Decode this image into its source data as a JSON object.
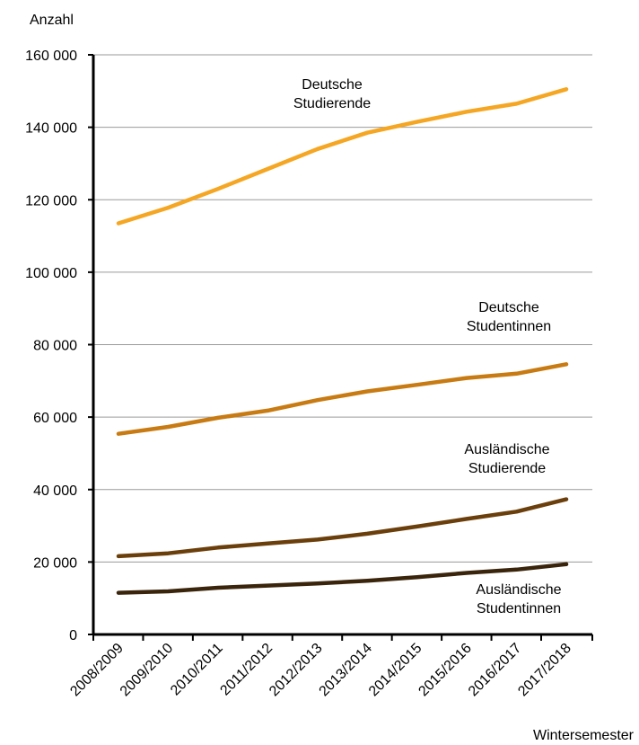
{
  "chart_data": {
    "type": "line",
    "title": "",
    "ylabel": "Anzahl",
    "xlabel": "Wintersemester",
    "ylim": [
      0,
      160000
    ],
    "yticks": [
      0,
      20000,
      40000,
      60000,
      80000,
      100000,
      120000,
      140000,
      160000
    ],
    "ytick_labels": [
      "0",
      "20 000",
      "40 000",
      "60 000",
      "80 000",
      "100 000",
      "120 000",
      "140 000",
      "160 000"
    ],
    "grid": true,
    "categories": [
      "2008/2009",
      "2009/2010",
      "2010/2011",
      "2011/2012",
      "2012/2013",
      "2013/2014",
      "2014/2015",
      "2015/2016",
      "2016/2017",
      "2017/2018"
    ],
    "series": [
      {
        "name": "Deutsche Studierende",
        "label_lines": [
          "Deutsche",
          "Studierende"
        ],
        "color": "#F5A623",
        "values": [
          113500,
          117800,
          123000,
          128500,
          134000,
          138500,
          141500,
          144300,
          146500,
          150500
        ]
      },
      {
        "name": "Deutsche Studentinnen",
        "label_lines": [
          "Deutsche",
          "Studentinnen"
        ],
        "color": "#C87B12",
        "values": [
          55400,
          57300,
          59800,
          61800,
          64700,
          67100,
          68900,
          70800,
          72000,
          74600
        ]
      },
      {
        "name": "Ausländische Studierende",
        "label_lines": [
          "Ausländische",
          "Studierende"
        ],
        "color": "#6B3F0B",
        "values": [
          21600,
          22400,
          24000,
          25100,
          26200,
          27800,
          29800,
          31900,
          33900,
          37300
        ]
      },
      {
        "name": "Ausländische Studentinnen",
        "label_lines": [
          "Ausländische",
          "Studentinnen"
        ],
        "color": "#3A250C",
        "values": [
          11500,
          11900,
          12900,
          13500,
          14100,
          14800,
          15800,
          17000,
          17900,
          19400
        ]
      }
    ]
  }
}
